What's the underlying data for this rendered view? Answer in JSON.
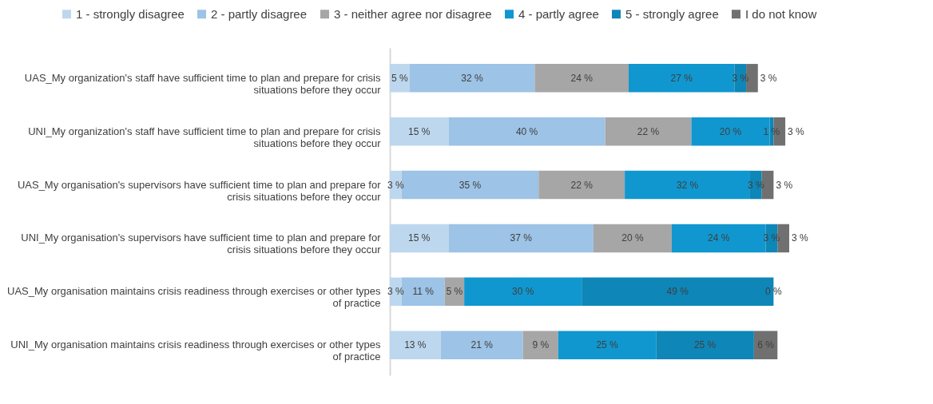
{
  "chart_data": {
    "type": "bar",
    "orientation": "horizontal",
    "stacked": true,
    "legend": "top",
    "categories": [
      "UAS_My organization's staff have sufficient time to plan and prepare for crisis situations before they occur",
      "UNI_My organization's staff have sufficient time to plan and prepare for crisis situations before they occur",
      "UAS_My organisation's supervisors have sufficient time to plan and prepare for crisis situations before they occur",
      "UNI_My organisation's supervisors have sufficient time to plan and prepare for crisis situations before they occur",
      "UAS_My organisation maintains crisis readiness through exercises or other types of practice",
      "UNI_My organisation maintains crisis readiness through exercises or other types of practice"
    ],
    "series": [
      {
        "name": "1 - strongly disagree",
        "color": "#bdd7ee",
        "values": [
          5,
          15,
          3,
          15,
          3,
          13
        ],
        "value_labels": [
          "5 %",
          "15 %",
          "3 %",
          "15 %",
          "3 %",
          "13 %"
        ]
      },
      {
        "name": "2 - partly disagree",
        "color": "#9dc3e6",
        "values": [
          32,
          40,
          35,
          37,
          11,
          21
        ],
        "value_labels": [
          "32 %",
          "40 %",
          "35 %",
          "37 %",
          "11 %",
          "21 %"
        ]
      },
      {
        "name": "3 - neither agree nor disagree",
        "color": "#a6a6a6",
        "values": [
          24,
          22,
          22,
          20,
          5,
          9
        ],
        "value_labels": [
          "24 %",
          "22 %",
          "22 %",
          "20 %",
          "5 %",
          "9 %"
        ]
      },
      {
        "name": "4 - partly agree",
        "color": "#1097cf",
        "values": [
          27,
          20,
          32,
          24,
          30,
          25
        ],
        "value_labels": [
          "27 %",
          "20 %",
          "32 %",
          "24 %",
          "30 %",
          "25 %"
        ]
      },
      {
        "name": "5 - strongly agree",
        "color": "#0e86b8",
        "values": [
          3,
          1,
          3,
          3,
          49,
          25
        ],
        "value_labels": [
          "3 %",
          "1 %",
          "3 %",
          "3 %",
          "49 %",
          "25 %"
        ]
      },
      {
        "name": "I do not know",
        "color": "#707070",
        "values": [
          3,
          3,
          3,
          3,
          0,
          6
        ],
        "value_labels": [
          "3 %",
          "3 %",
          "3 %",
          "3 %",
          "0 %",
          "6 %"
        ]
      }
    ]
  }
}
